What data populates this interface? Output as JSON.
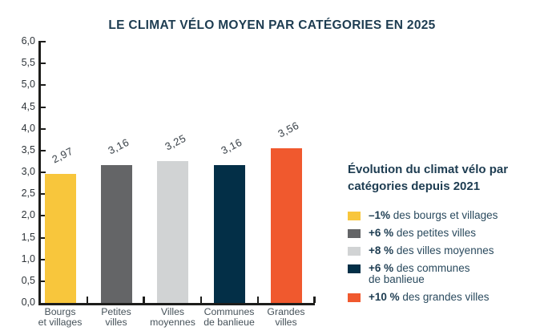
{
  "chart_data": {
    "type": "bar",
    "title": "LE CLIMAT VÉLO MOYEN PAR CATÉGORIES EN 2025",
    "categories": [
      "Bourgs et villages",
      "Petites villes",
      "Villes moyennes",
      "Communes de banlieue",
      "Grandes villes"
    ],
    "category_lines": [
      [
        "Bourgs",
        "et villages"
      ],
      [
        "Petites",
        "villes"
      ],
      [
        "Villes",
        "moyennes"
      ],
      [
        "Communes",
        "de banlieue"
      ],
      [
        "Grandes",
        "villes"
      ]
    ],
    "values": [
      2.97,
      3.16,
      3.25,
      3.16,
      3.56
    ],
    "value_labels": [
      "2,97",
      "3,16",
      "3,25",
      "3,16",
      "3,56"
    ],
    "bar_colors": [
      "#f8c63c",
      "#646567",
      "#d1d3d4",
      "#032f47",
      "#f0592e"
    ],
    "xlabel": "",
    "ylabel": "",
    "ylim": [
      0,
      6
    ],
    "ytick_step": 0.5,
    "ytick_labels": [
      "6,0",
      "5,5",
      "5,0",
      "4,5",
      "4,0",
      "3,5",
      "3,0",
      "2,5",
      "2,0",
      "1,5",
      "1,0",
      "0,5",
      "0,0"
    ],
    "grid": false,
    "legend_position": "right",
    "decimal_separator": ","
  },
  "legend": {
    "title": "Évolution du climat vélo par catégories depuis 2021",
    "items": [
      {
        "color": "#f8c63c",
        "delta": "–1%",
        "label": " des bourgs et villages"
      },
      {
        "color": "#646567",
        "delta": "+6 %",
        "label": " des petites villes"
      },
      {
        "color": "#d1d3d4",
        "delta": "+8 %",
        "label": " des villes moyennes"
      },
      {
        "color": "#032f47",
        "delta": "+6 %",
        "label": " des communes",
        "label_line2": "de banlieue"
      },
      {
        "color": "#f0592e",
        "delta": "+10 %",
        "label": " des grandes villes"
      }
    ]
  },
  "colors": {
    "title_navy": "#1d3c51",
    "axis_line": "#1d1d1b",
    "axis_text": "#2e3439",
    "category_text": "#46525a",
    "value_text": "#3a4249",
    "legend_text": "#2a4a5e"
  }
}
